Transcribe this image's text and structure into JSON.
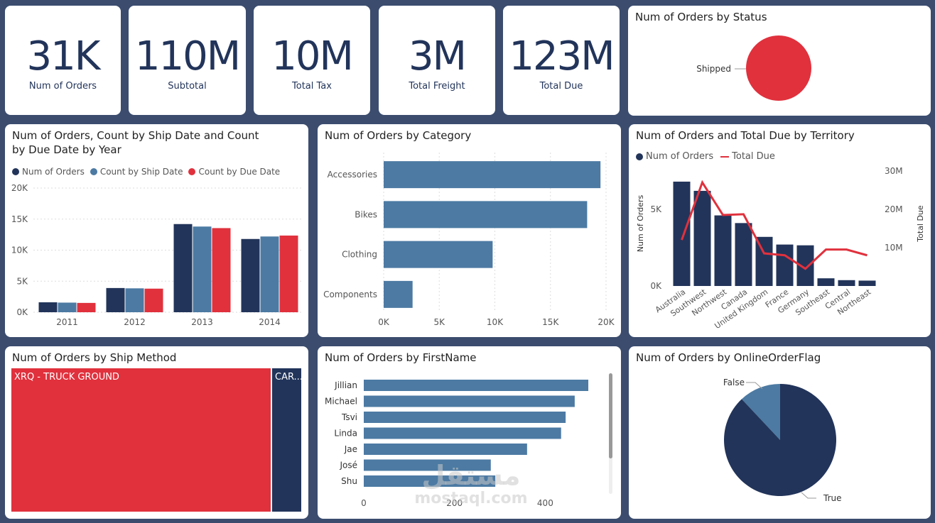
{
  "kpis": [
    {
      "value": "31K",
      "label": "Num of Orders"
    },
    {
      "value": "110M",
      "label": "Subtotal"
    },
    {
      "value": "10M",
      "label": "Total Tax"
    },
    {
      "value": "3M",
      "label": "Total Freight"
    },
    {
      "value": "123M",
      "label": "Total Due"
    }
  ],
  "status_chart": {
    "title": "Num of Orders by Status",
    "chart_data": {
      "type": "pie",
      "categories": [
        "Shipped"
      ],
      "values": [
        31000
      ],
      "colors": [
        "#e0313d"
      ]
    }
  },
  "year_chart": {
    "title_line1": "Num of Orders, Count by Ship Date and Count",
    "title_line2": "by Due Date by Year",
    "legend": [
      "Num of Orders",
      "Count by Ship Date",
      "Count by Due Date"
    ],
    "chart_data": {
      "type": "bar",
      "categories": [
        "2011",
        "2012",
        "2013",
        "2014"
      ],
      "series": [
        {
          "name": "Num of Orders",
          "values": [
            1600,
            3900,
            14200,
            11800
          ],
          "color": "#22345a"
        },
        {
          "name": "Count by Ship Date",
          "values": [
            1550,
            3850,
            13800,
            12200
          ],
          "color": "#4c7aa3"
        },
        {
          "name": "Count by Due Date",
          "values": [
            1500,
            3800,
            13550,
            12350
          ],
          "color": "#e0313d"
        }
      ],
      "yticks": [
        "0K",
        "5K",
        "10K",
        "15K",
        "20K"
      ],
      "ylim": [
        0,
        20000
      ]
    }
  },
  "category_chart": {
    "title": "Num of Orders by Category",
    "chart_data": {
      "type": "bar",
      "categories": [
        "Accessories",
        "Bikes",
        "Clothing",
        "Components"
      ],
      "values": [
        19500,
        18300,
        9800,
        2600
      ],
      "xticks": [
        "0K",
        "5K",
        "10K",
        "15K",
        "20K"
      ],
      "xlim": [
        0,
        20000
      ],
      "color": "#4c7aa3"
    }
  },
  "territory_chart": {
    "title": "Num of Orders and Total Due by Territory",
    "legend": [
      "Num of Orders",
      "Total Due"
    ],
    "ylabel_left": "Num of Orders",
    "ylabel_right": "Total Due",
    "chart_data": {
      "type": "bar",
      "categories": [
        "Australia",
        "Southwest",
        "Northwest",
        "Canada",
        "United Kingdom",
        "France",
        "Germany",
        "Southeast",
        "Central",
        "Northeast"
      ],
      "series": [
        {
          "name": "Num of Orders",
          "values": [
            6800,
            6200,
            4600,
            4100,
            3200,
            2700,
            2650,
            500,
            380,
            350
          ],
          "color": "#22345a"
        },
        {
          "name": "Total Due",
          "values": [
            12000000,
            27000000,
            18500000,
            18700000,
            8500000,
            8000000,
            4500000,
            9500000,
            9500000,
            8000000
          ],
          "color": "#e0313d"
        }
      ],
      "yticks_left": [
        "0K",
        "5K"
      ],
      "yticks_right": [
        "10M",
        "20M",
        "30M"
      ],
      "ylim_left": [
        0,
        8000
      ],
      "ylim_right": [
        0,
        32000000
      ]
    }
  },
  "ship_method_chart": {
    "title": "Num of Orders by Ship Method",
    "chart_data": {
      "type": "treemap",
      "categories": [
        "XRQ - TRUCK GROUND",
        "CAR..."
      ],
      "colors": [
        "#e0313d",
        "#22345a"
      ]
    }
  },
  "firstname_chart": {
    "title": "Num of Orders by FirstName",
    "chart_data": {
      "type": "bar",
      "categories": [
        "Jillian",
        "Michael",
        "Tsvi",
        "Linda",
        "Jae",
        "José",
        "Shu"
      ],
      "values": [
        495,
        465,
        445,
        435,
        360,
        280,
        290
      ],
      "xticks": [
        "0",
        "200",
        "400"
      ],
      "xlim": [
        0,
        520
      ],
      "color": "#4c7aa3"
    }
  },
  "online_flag_chart": {
    "title": "Num of Orders by OnlineOrderFlag",
    "chart_data": {
      "type": "pie",
      "categories": [
        "False",
        "True"
      ],
      "values": [
        12,
        88
      ],
      "colors": [
        "#4c7aa3",
        "#22345a"
      ]
    }
  },
  "watermark": {
    "arabic": "مستقل",
    "latin": "mostaql.com"
  }
}
